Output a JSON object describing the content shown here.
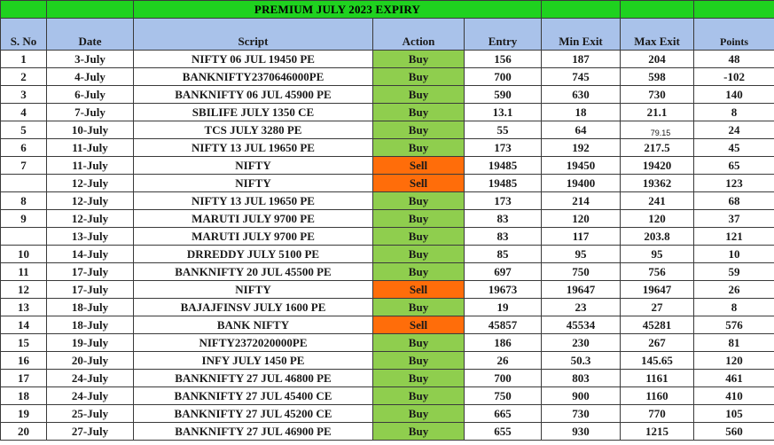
{
  "banner": {
    "title": "PREMIUM JULY 2023 EXPIRY"
  },
  "columns": {
    "sno": "S. No",
    "date": "Date",
    "script": "Script",
    "action": "Action",
    "entry": "Entry",
    "min_exit": "Min Exit",
    "max_exit": "Max Exit",
    "points": "Points"
  },
  "colors": {
    "banner": "#1fd21f",
    "header": "#a9c2ea",
    "buy": "#8fce4e",
    "sell": "#ff6d0a"
  },
  "rows": [
    {
      "sno": "1",
      "date": "3-July",
      "script": "NIFTY 06 JUL 19450 PE",
      "action": "Buy",
      "entry": "156",
      "min_exit": "187",
      "max_exit": "204",
      "points": "48"
    },
    {
      "sno": "2",
      "date": "4-July",
      "script": "BANKNIFTY2370646000PE",
      "action": "Buy",
      "entry": "700",
      "min_exit": "745",
      "max_exit": "598",
      "points": "-102"
    },
    {
      "sno": "3",
      "date": "6-July",
      "script": "BANKNIFTY 06 JUL 45900 PE",
      "action": "Buy",
      "entry": "590",
      "min_exit": "630",
      "max_exit": "730",
      "points": "140"
    },
    {
      "sno": "4",
      "date": "7-July",
      "script": "SBILIFE JULY 1350 CE",
      "action": "Buy",
      "entry": "13.1",
      "min_exit": "18",
      "max_exit": "21.1",
      "points": "8"
    },
    {
      "sno": "5",
      "date": "10-July",
      "script": "TCS JULY 3280 PE",
      "action": "Buy",
      "entry": "55",
      "min_exit": "64",
      "max_exit": "79.15",
      "points": "24",
      "small_max": true
    },
    {
      "sno": "6",
      "date": "11-July",
      "script": "NIFTY 13 JUL 19650 PE",
      "action": "Buy",
      "entry": "173",
      "min_exit": "192",
      "max_exit": "217.5",
      "points": "45"
    },
    {
      "sno": "7",
      "date": "11-July",
      "script": "NIFTY",
      "action": "Sell",
      "entry": "19485",
      "min_exit": "19450",
      "max_exit": "19420",
      "points": "65"
    },
    {
      "sno": "",
      "date": "12-July",
      "script": "NIFTY",
      "action": "Sell",
      "entry": "19485",
      "min_exit": "19400",
      "max_exit": "19362",
      "points": "123"
    },
    {
      "sno": "8",
      "date": "12-July",
      "script": "NIFTY 13 JUL 19650 PE",
      "action": "Buy",
      "entry": "173",
      "min_exit": "214",
      "max_exit": "241",
      "points": "68"
    },
    {
      "sno": "9",
      "date": "12-July",
      "script": "MARUTI JULY 9700 PE",
      "action": "Buy",
      "entry": "83",
      "min_exit": "120",
      "max_exit": "120",
      "points": "37"
    },
    {
      "sno": "",
      "date": "13-July",
      "script": "MARUTI JULY 9700 PE",
      "action": "Buy",
      "entry": "83",
      "min_exit": "117",
      "max_exit": "203.8",
      "points": "121"
    },
    {
      "sno": "10",
      "date": "14-July",
      "script": "DRREDDY JULY 5100 PE",
      "action": "Buy",
      "entry": "85",
      "min_exit": "95",
      "max_exit": "95",
      "points": "10"
    },
    {
      "sno": "11",
      "date": "17-July",
      "script": "BANKNIFTY 20 JUL 45500 PE",
      "action": "Buy",
      "entry": "697",
      "min_exit": "750",
      "max_exit": "756",
      "points": "59"
    },
    {
      "sno": "12",
      "date": "17-July",
      "script": "NIFTY",
      "action": "Sell",
      "entry": "19673",
      "min_exit": "19647",
      "max_exit": "19647",
      "points": "26"
    },
    {
      "sno": "13",
      "date": "18-July",
      "script": "BAJAJFINSV JULY 1600 PE",
      "action": "Buy",
      "entry": "19",
      "min_exit": "23",
      "max_exit": "27",
      "points": "8"
    },
    {
      "sno": "14",
      "date": "18-July",
      "script": "BANK NIFTY",
      "action": "Sell",
      "entry": "45857",
      "min_exit": "45534",
      "max_exit": "45281",
      "points": "576"
    },
    {
      "sno": "15",
      "date": "19-July",
      "script": "NIFTY2372020000PE",
      "action": "Buy",
      "entry": "186",
      "min_exit": "230",
      "max_exit": "267",
      "points": "81"
    },
    {
      "sno": "16",
      "date": "20-July",
      "script": "INFY JULY 1450 PE",
      "action": "Buy",
      "entry": "26",
      "min_exit": "50.3",
      "max_exit": "145.65",
      "points": "120"
    },
    {
      "sno": "17",
      "date": "24-July",
      "script": "BANKNIFTY 27 JUL 46800 PE",
      "action": "Buy",
      "entry": "700",
      "min_exit": "803",
      "max_exit": "1161",
      "points": "461"
    },
    {
      "sno": "18",
      "date": "24-July",
      "script": "BANKNIFTY 27 JUL 45400 CE",
      "action": "Buy",
      "entry": "750",
      "min_exit": "900",
      "max_exit": "1160",
      "points": "410"
    },
    {
      "sno": "19",
      "date": "25-July",
      "script": "BANKNIFTY 27 JUL 45200 CE",
      "action": "Buy",
      "entry": "665",
      "min_exit": "730",
      "max_exit": "770",
      "points": "105"
    },
    {
      "sno": "20",
      "date": "27-July",
      "script": "BANKNIFTY 27 JUL 46900 PE",
      "action": "Buy",
      "entry": "655",
      "min_exit": "930",
      "max_exit": "1215",
      "points": "560"
    }
  ]
}
